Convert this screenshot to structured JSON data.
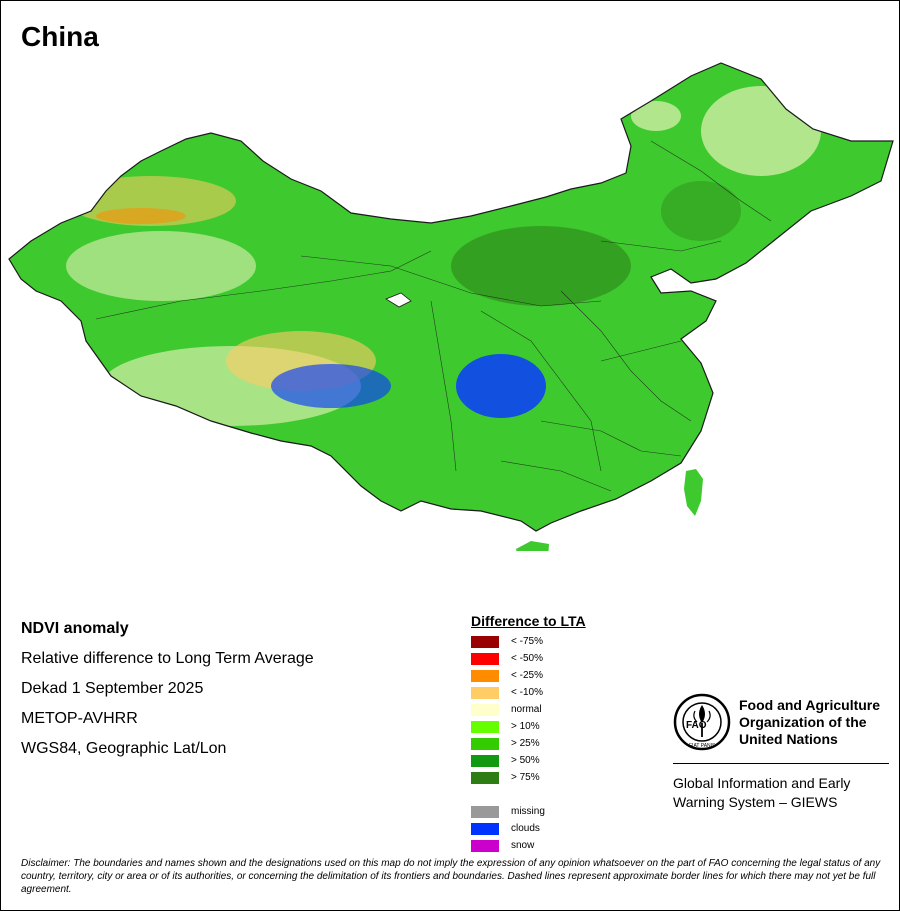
{
  "map": {
    "title": "China",
    "colors": {
      "border": "#1a1a1a",
      "base_green": "#3ec92e",
      "dark_green": "#2f8f1c",
      "pale_yellow": "#fffacd",
      "light_orange": "#ffcc66",
      "orange": "#ff8c00",
      "blue": "#0a3cff"
    }
  },
  "info": {
    "product": "NDVI anomaly",
    "description": "Relative difference to Long Term Average",
    "period": "Dekad 1 September 2025",
    "sensor": "METOP-AVHRR",
    "projection": "WGS84, Geographic Lat/Lon"
  },
  "legend": {
    "title": "Difference to LTA",
    "classes": [
      {
        "label": "< -75%",
        "color": "#990000"
      },
      {
        "label": "< -50%",
        "color": "#ff0000"
      },
      {
        "label": "< -25%",
        "color": "#ff8c00"
      },
      {
        "label": "< -10%",
        "color": "#ffcc66"
      },
      {
        "label": "normal",
        "color": "#ffffcc"
      },
      {
        "label": "> 10%",
        "color": "#66ff00"
      },
      {
        "label": "> 25%",
        "color": "#33cc00"
      },
      {
        "label": "> 50%",
        "color": "#119911"
      },
      {
        "label": "> 75%",
        "color": "#2e7d14"
      }
    ],
    "other": [
      {
        "label": "missing",
        "color": "#999999"
      },
      {
        "label": "clouds",
        "color": "#0033ff"
      },
      {
        "label": "snow",
        "color": "#cc00cc"
      }
    ]
  },
  "fao": {
    "org_line1": "Food and Agriculture",
    "org_line2": "Organization of the",
    "org_line3": "United Nations",
    "system_line1": "Global Information and Early",
    "system_line2": "Warning System – GIEWS",
    "logo_text": "FAO",
    "logo_motto": "FIAT PANIS"
  },
  "disclaimer": "Disclaimer: The boundaries and names shown and the designations used on this map do not imply the expression of any opinion whatsoever on the part of FAO concerning the legal status of any country, territory, city or area or of its authorities, or concerning the delimitation of its frontiers and boundaries. Dashed lines represent approximate border lines for which there may not yet be full agreement."
}
